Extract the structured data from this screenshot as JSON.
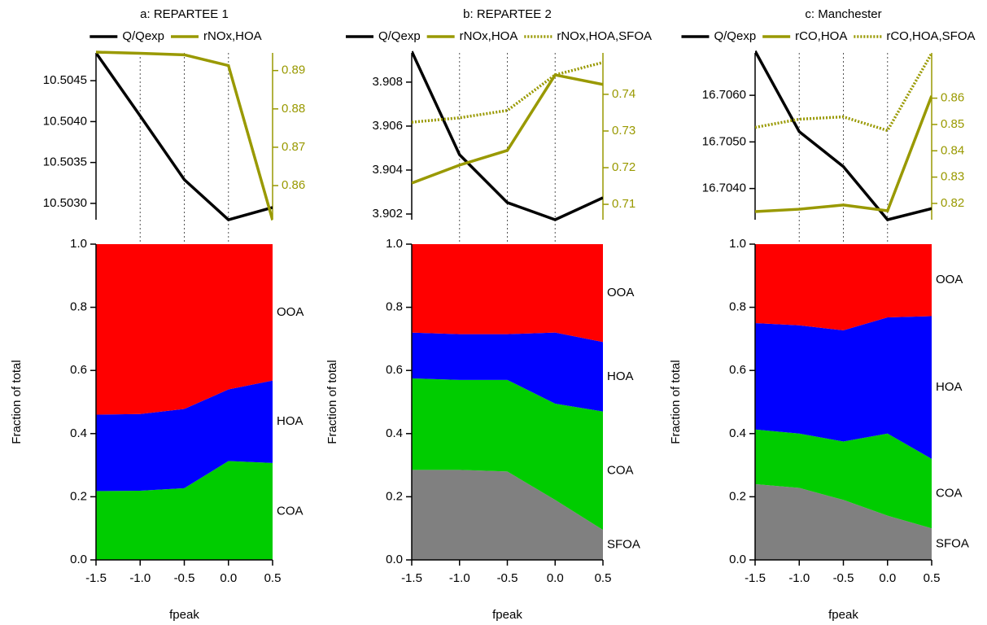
{
  "chart_data": [
    {
      "type": "line",
      "title": "a: REPARTEE 1",
      "x": [
        -1.5,
        -1.0,
        -0.5,
        0.0,
        0.5
      ],
      "xlim": [
        -1.5,
        0.5
      ],
      "xticks": [
        -1.0,
        -0.5,
        0.0
      ],
      "ylim": [
        10.5028,
        10.50484
      ],
      "yticks": [
        {
          "value": 10.503,
          "label": "10.5030"
        },
        10.5035,
        {
          "value": 10.504,
          "label": "10.5040"
        },
        10.5045
      ],
      "y2lim": [
        0.8511,
        0.8946
      ],
      "y2ticks": [
        0.86,
        0.87,
        0.88,
        0.89
      ],
      "series": [
        {
          "name": "Q/Qexp",
          "color": "#000000",
          "values": [
            10.50484,
            10.50407,
            10.50329,
            10.5028,
            10.50295
          ]
        },
        {
          "name": "rNOx,HOA",
          "color": "#999900",
          "axis": "y2",
          "values": [
            0.8948,
            0.8945,
            0.8941,
            0.8913,
            0.851
          ]
        }
      ]
    },
    {
      "type": "area",
      "stacked": true,
      "xlabel": "fpeak",
      "ylabel": "Fraction of total",
      "x": [
        -1.5,
        -1.0,
        -0.5,
        0.0,
        0.5
      ],
      "xlim": [
        -1.5,
        0.5
      ],
      "xticks": [
        -1.5,
        {
          "value": -1.0,
          "label": "-1.0"
        },
        -0.5,
        {
          "value": 0.0,
          "label": "0.0"
        },
        0.5
      ],
      "ylim": [
        0,
        1
      ],
      "yticks": [
        {
          "value": 0,
          "label": "0.0"
        },
        0.2,
        0.4,
        0.6,
        0.8,
        {
          "value": 1,
          "label": "1.0"
        }
      ],
      "series": [
        {
          "name": "COA",
          "color": "#00cc00",
          "values": [
            0.218,
            0.219,
            0.227,
            0.313,
            0.307
          ]
        },
        {
          "name": "HOA",
          "color": "#0000ff",
          "values": [
            0.242,
            0.243,
            0.251,
            0.227,
            0.261
          ]
        },
        {
          "name": "OOA",
          "color": "#ff0000",
          "values": [
            0.54,
            0.538,
            0.522,
            0.46,
            0.432
          ]
        }
      ]
    },
    {
      "type": "line",
      "title": "b: REPARTEE 2",
      "x": [
        -1.5,
        -1.0,
        -0.5,
        0.0,
        0.5
      ],
      "xlim": [
        -1.5,
        0.5
      ],
      "xticks": [
        -1.0,
        -0.5,
        0.0
      ],
      "ylim": [
        3.90174,
        3.90933
      ],
      "yticks": [
        3.902,
        3.904,
        3.906,
        3.908
      ],
      "y2lim": [
        0.7058,
        0.7513
      ],
      "y2ticks": [
        0.71,
        0.72,
        0.73,
        0.74
      ],
      "series": [
        {
          "name": "Q/Qexp",
          "color": "#000000",
          "values": [
            3.9094,
            3.9047,
            3.90252,
            3.90174,
            3.90274
          ]
        },
        {
          "name": "rNOx,HOA",
          "color": "#999900",
          "axis": "y2",
          "values": [
            0.7158,
            0.7207,
            0.7247,
            0.7453,
            0.7427
          ]
        },
        {
          "name": "rNOx,HOA,SFOA",
          "color": "#999900",
          "axis": "y2",
          "style": "dotted",
          "values": [
            0.7324,
            0.7336,
            0.7356,
            0.7453,
            0.7487
          ]
        }
      ]
    },
    {
      "type": "area",
      "stacked": true,
      "xlabel": "fpeak",
      "ylabel": "Fraction of total",
      "x": [
        -1.5,
        -1.0,
        -0.5,
        0.0,
        0.5
      ],
      "xlim": [
        -1.5,
        0.5
      ],
      "xticks": [
        -1.5,
        {
          "value": -1.0,
          "label": "-1.0"
        },
        -0.5,
        {
          "value": 0.0,
          "label": "0.0"
        },
        0.5
      ],
      "ylim": [
        0,
        1
      ],
      "yticks": [
        {
          "value": 0,
          "label": "0.0"
        },
        0.2,
        0.4,
        0.6,
        0.8,
        {
          "value": 1,
          "label": "1.0"
        }
      ],
      "series": [
        {
          "name": "SFOA",
          "color": "#808080",
          "values": [
            0.285,
            0.285,
            0.28,
            0.19,
            0.095
          ]
        },
        {
          "name": "COA",
          "color": "#00cc00",
          "values": [
            0.29,
            0.285,
            0.29,
            0.305,
            0.375
          ]
        },
        {
          "name": "HOA",
          "color": "#0000ff",
          "values": [
            0.145,
            0.145,
            0.145,
            0.225,
            0.22
          ]
        },
        {
          "name": "OOA",
          "color": "#ff0000",
          "values": [
            0.28,
            0.285,
            0.285,
            0.28,
            0.31
          ]
        }
      ]
    },
    {
      "type": "line",
      "title": "c: Manchester",
      "x": [
        -1.5,
        -1.0,
        -0.5,
        0.0,
        0.5
      ],
      "xlim": [
        -1.5,
        0.5
      ],
      "xticks": [
        -1.0,
        -0.5,
        0.0
      ],
      "ylim": [
        16.70333,
        16.70691
      ],
      "yticks": [
        {
          "value": 16.704,
          "label": "16.7040"
        },
        {
          "value": 16.705,
          "label": "16.7050"
        },
        {
          "value": 16.706,
          "label": "16.7060"
        }
      ],
      "y2lim": [
        0.8138,
        0.8772
      ],
      "y2ticks": [
        0.82,
        0.83,
        0.84,
        0.85,
        0.86
      ],
      "series": [
        {
          "name": "Q/Qexp",
          "color": "#000000",
          "values": [
            16.70695,
            16.70522,
            16.70447,
            16.70333,
            16.70357
          ]
        },
        {
          "name": "rCO,HOA",
          "color": "#999900",
          "axis": "y2",
          "values": [
            0.8169,
            0.8178,
            0.8194,
            0.8172,
            0.8609
          ]
        },
        {
          "name": "rCO,HOA,SFOA",
          "color": "#999900",
          "axis": "y2",
          "style": "dotted",
          "values": [
            0.8489,
            0.852,
            0.8529,
            0.8477,
            0.877
          ]
        }
      ]
    },
    {
      "type": "area",
      "stacked": true,
      "xlabel": "fpeak",
      "ylabel": "Fraction of total",
      "x": [
        -1.5,
        -1.0,
        -0.5,
        0.0,
        0.5
      ],
      "xlim": [
        -1.5,
        0.5
      ],
      "xticks": [
        -1.5,
        {
          "value": -1.0,
          "label": "-1.0"
        },
        -0.5,
        {
          "value": 0.0,
          "label": "0.0"
        },
        0.5
      ],
      "ylim": [
        0,
        1
      ],
      "yticks": [
        {
          "value": 0,
          "label": "0.0"
        },
        0.2,
        0.4,
        0.6,
        0.8,
        {
          "value": 1,
          "label": "1.0"
        }
      ],
      "series": [
        {
          "name": "SFOA",
          "color": "#808080",
          "values": [
            0.24,
            0.228,
            0.19,
            0.14,
            0.1
          ]
        },
        {
          "name": "COA",
          "color": "#00cc00",
          "values": [
            0.173,
            0.172,
            0.185,
            0.26,
            0.22
          ]
        },
        {
          "name": "HOA",
          "color": "#0000ff",
          "values": [
            0.337,
            0.343,
            0.352,
            0.368,
            0.452
          ]
        },
        {
          "name": "OOA",
          "color": "#ff0000",
          "values": [
            0.25,
            0.257,
            0.273,
            0.232,
            0.228
          ]
        }
      ]
    }
  ]
}
